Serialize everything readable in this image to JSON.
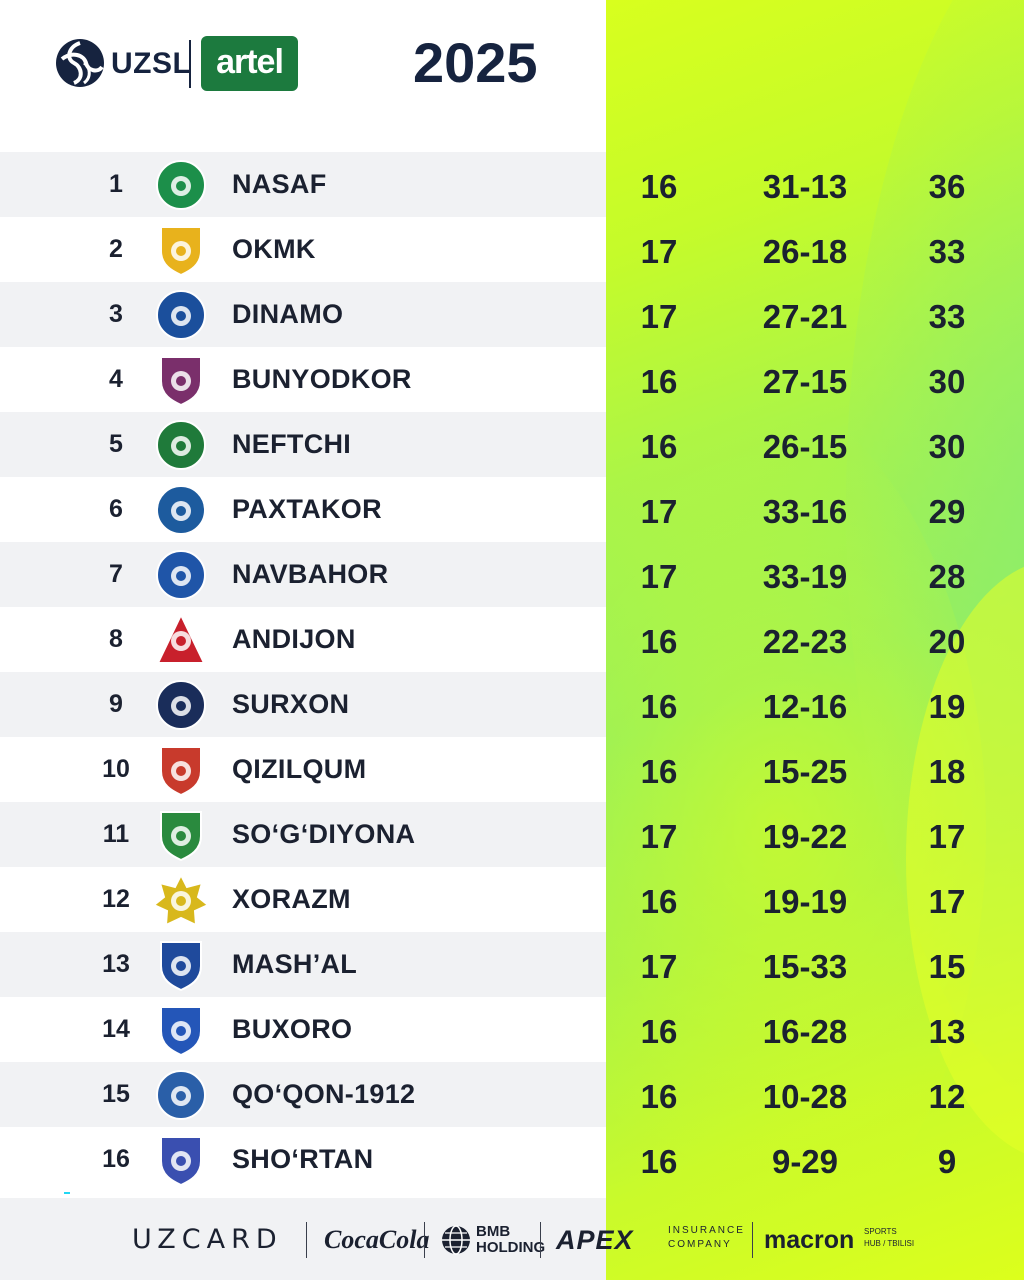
{
  "header": {
    "league_logo_text": "UZSL",
    "sponsor_badge": "artel",
    "season": "2025"
  },
  "standings": [
    {
      "pos": "1",
      "club": "NASAF",
      "played": "16",
      "goals": "31-13",
      "points": "36",
      "crest_color": "#1c8f4a",
      "crest_shape": "circle"
    },
    {
      "pos": "2",
      "club": "OKMK",
      "played": "17",
      "goals": "26-18",
      "points": "33",
      "crest_color": "#e8b21c",
      "crest_shape": "shield"
    },
    {
      "pos": "3",
      "club": "DINAMO",
      "played": "17",
      "goals": "27-21",
      "points": "33",
      "crest_color": "#1b4f9c",
      "crest_shape": "circle"
    },
    {
      "pos": "4",
      "club": "BUNYODKOR",
      "played": "16",
      "goals": "27-15",
      "points": "30",
      "crest_color": "#7a2f6b",
      "crest_shape": "shield"
    },
    {
      "pos": "5",
      "club": "NEFTCHI",
      "played": "16",
      "goals": "26-15",
      "points": "30",
      "crest_color": "#1f7a3a",
      "crest_shape": "circle"
    },
    {
      "pos": "6",
      "club": "PAXTAKOR",
      "played": "17",
      "goals": "33-16",
      "points": "29",
      "crest_color": "#1d5b9e",
      "crest_shape": "circle"
    },
    {
      "pos": "7",
      "club": "NAVBAHOR",
      "played": "17",
      "goals": "33-19",
      "points": "28",
      "crest_color": "#1f55a8",
      "crest_shape": "circle"
    },
    {
      "pos": "8",
      "club": "ANDIJON",
      "played": "16",
      "goals": "22-23",
      "points": "20",
      "crest_color": "#c8202c",
      "crest_shape": "triangle"
    },
    {
      "pos": "9",
      "club": "SURXON",
      "played": "16",
      "goals": "12-16",
      "points": "19",
      "crest_color": "#1a2d5a",
      "crest_shape": "circle"
    },
    {
      "pos": "10",
      "club": "QIZILQUM",
      "played": "16",
      "goals": "15-25",
      "points": "18",
      "crest_color": "#c83a2c",
      "crest_shape": "shield"
    },
    {
      "pos": "11",
      "club": "SO‘G‘DIYONA",
      "played": "17",
      "goals": "19-22",
      "points": "17",
      "crest_color": "#2a8a3e",
      "crest_shape": "shield"
    },
    {
      "pos": "12",
      "club": "XORAZM",
      "played": "16",
      "goals": "19-19",
      "points": "17",
      "crest_color": "#d8b81c",
      "crest_shape": "star"
    },
    {
      "pos": "13",
      "club": "MASH’AL",
      "played": "17",
      "goals": "15-33",
      "points": "15",
      "crest_color": "#1f4a9c",
      "crest_shape": "shield"
    },
    {
      "pos": "14",
      "club": "BUXORO",
      "played": "16",
      "goals": "16-28",
      "points": "13",
      "crest_color": "#2456b8",
      "crest_shape": "shield"
    },
    {
      "pos": "15",
      "club": "QO‘QON-1912",
      "played": "16",
      "goals": "10-28",
      "points": "12",
      "crest_color": "#2a5fa8",
      "crest_shape": "circle"
    },
    {
      "pos": "16",
      "club": "SHO‘RTAN",
      "played": "16",
      "goals": "9-29",
      "points": "9",
      "crest_color": "#3a4fb0",
      "crest_shape": "shield"
    }
  ],
  "sponsors": {
    "uzcard": "UZCARD",
    "coke": "CocaCola",
    "bmb": "BMB\nHOLDING",
    "apex": "APEX",
    "apex_sub": "INSURANCE\nCOMPANY",
    "macron": "macron",
    "macron_sub": "SPORTS\nHUB / TBILISI"
  },
  "colors": {
    "navy": "#16233f",
    "artel_green": "#1c7a3e",
    "neon_yellow": "#d8ff1e",
    "neon_green": "#93ef5f",
    "position_bar_top": "#8a5cf0",
    "position_bar_bottom": "#22d7f3"
  }
}
